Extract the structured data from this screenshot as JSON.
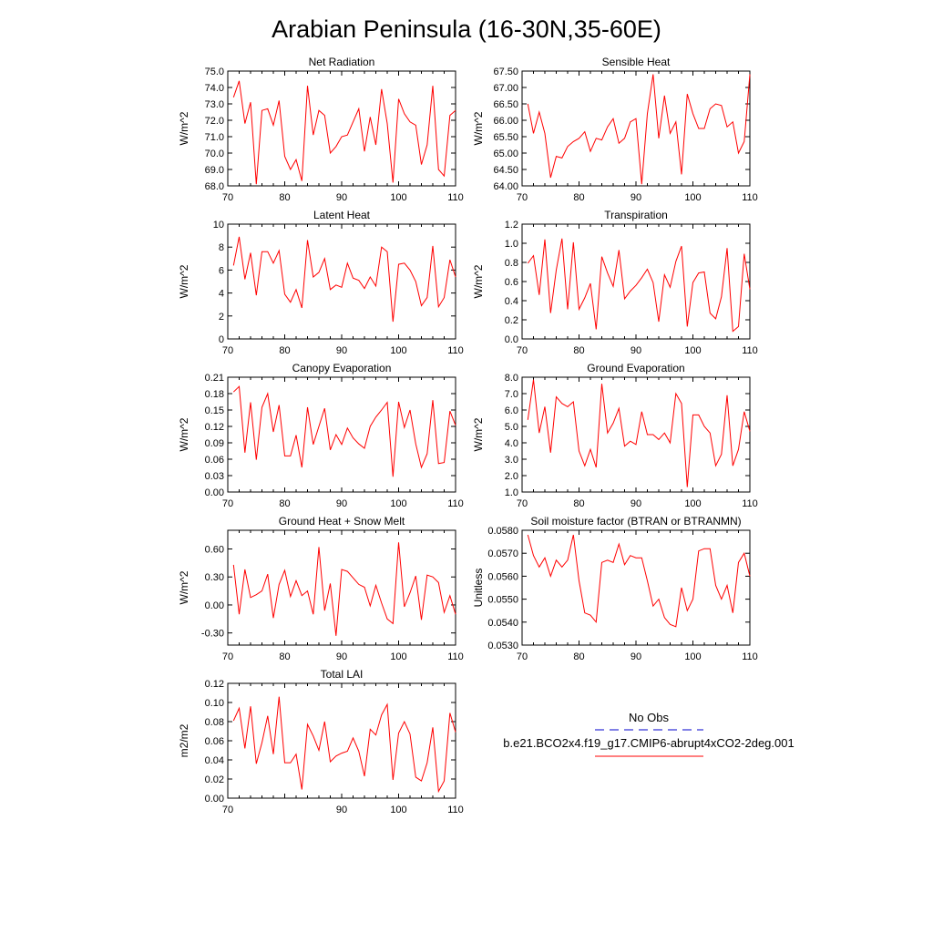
{
  "figure_title": "Arabian Peninsula (16-30N,35-60E)",
  "legend": {
    "obs_label": "No Obs",
    "model_label": "b.e21.BCO2x4.f19_g17.CMIP6-abrupt4xCO2-2deg.001",
    "obs_color": "#0000cc",
    "model_color": "#ff0000"
  },
  "chart_data": [
    {
      "type": "line",
      "title": "Net Radiation",
      "ylabel": "W/m^2",
      "xlim": [
        70,
        110
      ],
      "ylim": [
        68,
        75
      ],
      "x_ticks": [
        70,
        80,
        90,
        100,
        110
      ],
      "y_ticks": [
        "68.0",
        "69.0",
        "70.0",
        "71.0",
        "72.0",
        "73.0",
        "74.0",
        "75.0"
      ],
      "series": [
        {
          "color": "#ff0000",
          "x_start": 71,
          "values": [
            73.4,
            74.4,
            71.8,
            73.1,
            68.1,
            72.6,
            72.7,
            71.7,
            73.2,
            69.8,
            69.0,
            69.6,
            68.3,
            74.1,
            71.1,
            72.6,
            72.3,
            70.0,
            70.4,
            71.0,
            71.1,
            71.9,
            72.7,
            70.1,
            72.2,
            70.5,
            73.9,
            71.8,
            68.2,
            73.3,
            72.4,
            71.9,
            71.7,
            69.3,
            70.5,
            74.1,
            69.0,
            68.6,
            72.3,
            72.6
          ]
        }
      ]
    },
    {
      "type": "line",
      "title": "Sensible Heat",
      "ylabel": "W/m^2",
      "xlim": [
        70,
        110
      ],
      "ylim": [
        64,
        67.5
      ],
      "x_ticks": [
        70,
        80,
        90,
        100,
        110
      ],
      "y_ticks": [
        "64.00",
        "64.50",
        "65.00",
        "65.50",
        "66.00",
        "66.50",
        "67.00",
        "67.50"
      ],
      "series": [
        {
          "color": "#ff0000",
          "x_start": 71,
          "values": [
            66.5,
            65.6,
            66.25,
            65.6,
            64.25,
            64.9,
            64.85,
            65.2,
            65.35,
            65.45,
            65.65,
            65.05,
            65.45,
            65.4,
            65.8,
            66.05,
            65.3,
            65.45,
            65.95,
            66.05,
            64.05,
            66.2,
            67.4,
            65.45,
            66.75,
            65.6,
            65.95,
            64.35,
            66.8,
            66.2,
            65.75,
            65.75,
            66.35,
            66.5,
            66.45,
            65.8,
            65.95,
            65.0,
            65.35,
            67.4
          ]
        }
      ]
    },
    {
      "type": "line",
      "title": "Latent Heat",
      "ylabel": "W/m^2",
      "xlim": [
        70,
        110
      ],
      "ylim": [
        0,
        10
      ],
      "x_ticks": [
        70,
        80,
        90,
        100,
        110
      ],
      "y_ticks": [
        "0",
        "2",
        "4",
        "6",
        "8",
        "10"
      ],
      "series": [
        {
          "color": "#ff0000",
          "x_start": 71,
          "values": [
            6.4,
            8.9,
            5.2,
            7.5,
            3.8,
            7.6,
            7.6,
            6.6,
            7.7,
            3.9,
            3.2,
            4.3,
            2.7,
            8.6,
            5.4,
            5.8,
            7.0,
            4.3,
            4.7,
            4.5,
            6.6,
            5.3,
            5.1,
            4.4,
            5.4,
            4.6,
            8.0,
            7.6,
            1.5,
            6.5,
            6.6,
            6.0,
            5.0,
            2.9,
            3.6,
            8.1,
            2.8,
            3.6,
            6.9,
            5.4
          ]
        }
      ]
    },
    {
      "type": "line",
      "title": "Transpiration",
      "ylabel": "W/m^2",
      "xlim": [
        70,
        110
      ],
      "ylim": [
        0,
        1.2
      ],
      "x_ticks": [
        70,
        80,
        90,
        100,
        110
      ],
      "y_ticks": [
        "0.0",
        "0.2",
        "0.4",
        "0.6",
        "0.8",
        "1.0",
        "1.2"
      ],
      "series": [
        {
          "color": "#ff0000",
          "x_start": 71,
          "values": [
            0.79,
            0.87,
            0.46,
            1.04,
            0.27,
            0.72,
            1.05,
            0.31,
            1.01,
            0.31,
            0.43,
            0.58,
            0.1,
            0.86,
            0.69,
            0.55,
            0.93,
            0.42,
            0.5,
            0.56,
            0.64,
            0.73,
            0.59,
            0.18,
            0.67,
            0.54,
            0.81,
            0.97,
            0.13,
            0.59,
            0.69,
            0.7,
            0.27,
            0.21,
            0.44,
            0.95,
            0.08,
            0.13,
            0.89,
            0.52
          ]
        }
      ]
    },
    {
      "type": "line",
      "title": "Canopy Evaporation",
      "ylabel": "W/m^2",
      "xlim": [
        70,
        110
      ],
      "ylim": [
        0,
        0.21
      ],
      "x_ticks": [
        70,
        80,
        90,
        100,
        110
      ],
      "y_ticks": [
        "0.00",
        "0.03",
        "0.06",
        "0.09",
        "0.12",
        "0.15",
        "0.18",
        "0.21"
      ],
      "series": [
        {
          "color": "#ff0000",
          "x_start": 71,
          "values": [
            0.183,
            0.193,
            0.072,
            0.164,
            0.059,
            0.155,
            0.18,
            0.11,
            0.159,
            0.066,
            0.066,
            0.104,
            0.045,
            0.155,
            0.087,
            0.12,
            0.153,
            0.077,
            0.105,
            0.087,
            0.117,
            0.099,
            0.088,
            0.08,
            0.12,
            0.137,
            0.15,
            0.164,
            0.028,
            0.165,
            0.118,
            0.15,
            0.088,
            0.045,
            0.07,
            0.168,
            0.052,
            0.054,
            0.148,
            0.122
          ]
        }
      ]
    },
    {
      "type": "line",
      "title": "Ground Evaporation",
      "ylabel": "W/m^2",
      "xlim": [
        70,
        110
      ],
      "ylim": [
        1,
        8
      ],
      "x_ticks": [
        70,
        80,
        90,
        100,
        110
      ],
      "y_ticks": [
        "1.0",
        "2.0",
        "3.0",
        "4.0",
        "5.0",
        "6.0",
        "7.0",
        "8.0"
      ],
      "series": [
        {
          "color": "#ff0000",
          "x_start": 71,
          "values": [
            5.4,
            7.85,
            4.6,
            6.2,
            3.4,
            6.8,
            6.4,
            6.2,
            6.5,
            3.5,
            2.6,
            3.6,
            2.5,
            7.6,
            4.6,
            5.2,
            6.1,
            3.8,
            4.1,
            3.9,
            5.9,
            4.5,
            4.5,
            4.2,
            4.6,
            4.0,
            7.0,
            6.4,
            1.3,
            5.7,
            5.7,
            5.0,
            4.6,
            2.6,
            3.3,
            6.9,
            2.6,
            3.6,
            5.9,
            4.7
          ]
        }
      ]
    },
    {
      "type": "line",
      "title": "Ground Heat + Snow Melt",
      "ylabel": "W/m^2",
      "xlim": [
        70,
        110
      ],
      "ylim": [
        -0.43,
        0.8
      ],
      "x_ticks": [
        70,
        80,
        90,
        100,
        110
      ],
      "y_ticks": [
        "-0.30",
        "0.00",
        "0.30",
        "0.60"
      ],
      "series": [
        {
          "color": "#ff0000",
          "x_start": 71,
          "values": [
            0.43,
            -0.1,
            0.38,
            0.08,
            0.11,
            0.15,
            0.33,
            -0.14,
            0.22,
            0.37,
            0.09,
            0.26,
            0.1,
            0.15,
            -0.1,
            0.62,
            -0.06,
            0.23,
            -0.33,
            0.38,
            0.36,
            0.29,
            0.22,
            0.19,
            -0.01,
            0.21,
            0.02,
            -0.15,
            -0.2,
            0.67,
            -0.02,
            0.13,
            0.31,
            -0.16,
            0.32,
            0.3,
            0.24,
            -0.08,
            0.1,
            -0.1
          ]
        }
      ]
    },
    {
      "type": "line",
      "title": "Soil moisture factor (BTRAN or BTRANMN)",
      "ylabel": "Unitless",
      "xlim": [
        70,
        110
      ],
      "ylim": [
        0.053,
        0.058
      ],
      "x_ticks": [
        70,
        80,
        90,
        100,
        110
      ],
      "y_ticks": [
        "0.0530",
        "0.0540",
        "0.0550",
        "0.0560",
        "0.0570",
        "0.0580"
      ],
      "series": [
        {
          "color": "#ff0000",
          "x_start": 71,
          "values": [
            0.0578,
            0.0569,
            0.0564,
            0.0568,
            0.056,
            0.0567,
            0.0564,
            0.0567,
            0.0578,
            0.0558,
            0.0544,
            0.0543,
            0.054,
            0.0566,
            0.0567,
            0.0566,
            0.0574,
            0.0565,
            0.0569,
            0.0568,
            0.0568,
            0.0558,
            0.0547,
            0.055,
            0.0542,
            0.0539,
            0.0538,
            0.0555,
            0.0545,
            0.055,
            0.0571,
            0.0572,
            0.0572,
            0.0556,
            0.055,
            0.0556,
            0.0544,
            0.0566,
            0.057,
            0.056
          ]
        }
      ]
    },
    {
      "type": "line",
      "title": "Total LAI",
      "ylabel": "m2/m2",
      "xlim": [
        70,
        110
      ],
      "ylim": [
        0,
        0.12
      ],
      "x_ticks": [
        70,
        90,
        100,
        110
      ],
      "y_ticks": [
        "0.00",
        "0.02",
        "0.04",
        "0.06",
        "0.08",
        "0.10",
        "0.12"
      ],
      "series": [
        {
          "color": "#ff0000",
          "x_start": 71,
          "values": [
            0.081,
            0.094,
            0.052,
            0.096,
            0.036,
            0.058,
            0.086,
            0.046,
            0.106,
            0.037,
            0.037,
            0.046,
            0.009,
            0.077,
            0.065,
            0.05,
            0.08,
            0.038,
            0.044,
            0.047,
            0.049,
            0.063,
            0.049,
            0.023,
            0.072,
            0.066,
            0.087,
            0.098,
            0.019,
            0.068,
            0.08,
            0.067,
            0.022,
            0.018,
            0.037,
            0.074,
            0.007,
            0.018,
            0.089,
            0.069
          ]
        }
      ]
    }
  ]
}
